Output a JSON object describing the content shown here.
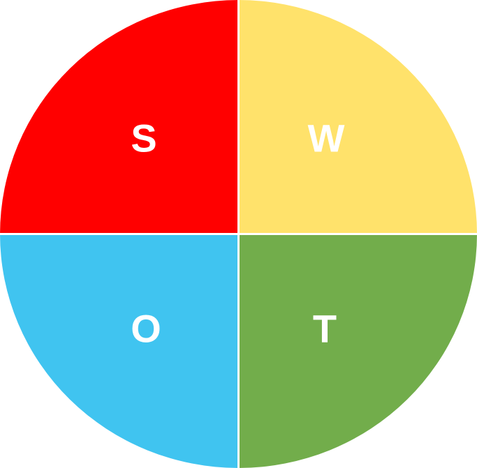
{
  "diagram": {
    "quadrants": [
      {
        "id": "top-left",
        "letter": "S",
        "color": "#ff0000"
      },
      {
        "id": "top-right",
        "letter": "W",
        "color": "#ffe26b"
      },
      {
        "id": "bottom-left",
        "letter": "O",
        "color": "#40c4f0"
      },
      {
        "id": "bottom-right",
        "letter": "T",
        "color": "#72ad4b"
      }
    ],
    "divider_color": "#ffffff"
  }
}
